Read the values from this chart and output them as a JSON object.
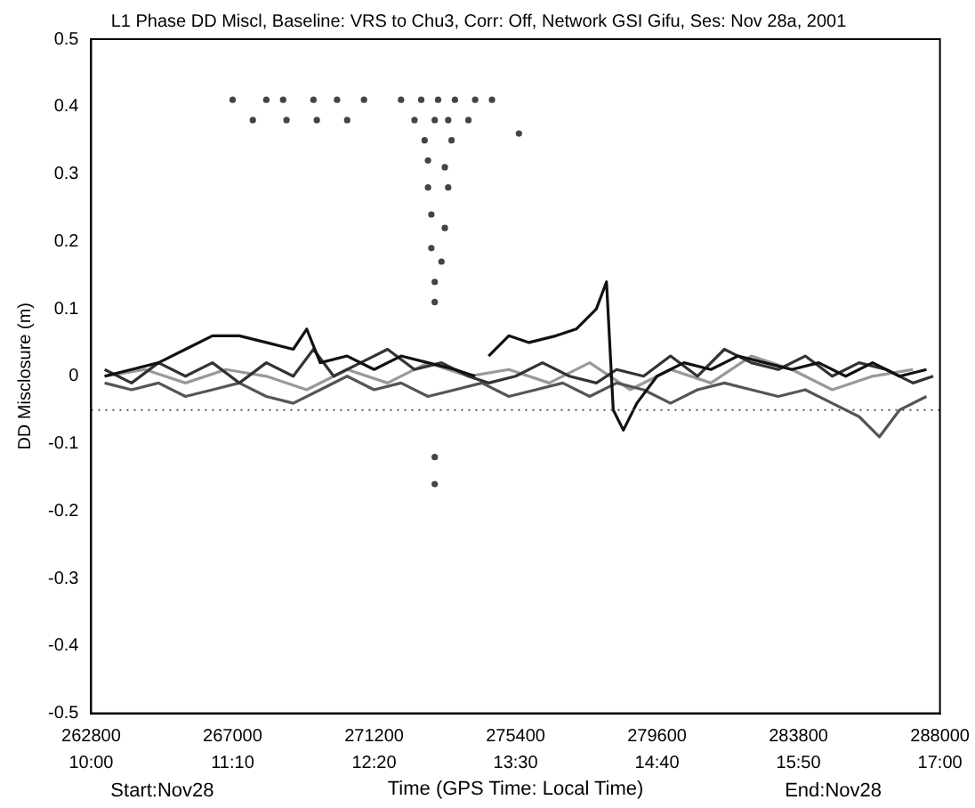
{
  "chart_data": {
    "type": "line",
    "title": "L1 Phase DD Miscl, Baseline: VRS to Chu3, Corr: Off, Network GSI Gifu, Ses: Nov 28a, 2001",
    "xlabel": "Time (GPS Time: Local Time)",
    "ylabel": "DD Misclosure (m)",
    "annotations": [
      "Start:Nov28",
      "End:Nov28"
    ],
    "xlim": [
      262800,
      288000
    ],
    "xticks": [
      262800,
      267000,
      271200,
      275400,
      279600,
      283800,
      288000
    ],
    "x2lim": [
      10,
      17
    ],
    "x2ticks": [
      {
        "value": 10,
        "label": "10:00"
      },
      {
        "value": 11.1667,
        "label": "11:10"
      },
      {
        "value": 12.3333,
        "label": "12:20"
      },
      {
        "value": 13.5,
        "label": "13:30"
      },
      {
        "value": 14.6667,
        "label": "14:40"
      },
      {
        "value": 15.8333,
        "label": "15:50"
      },
      {
        "value": 17,
        "label": "17:00"
      }
    ],
    "ylim": [
      -0.5,
      0.5
    ],
    "yticks": [
      -0.5,
      -0.4,
      -0.3,
      -0.2,
      -0.1,
      0,
      0.1,
      0.2,
      0.3,
      0.4,
      0.5
    ],
    "grid": false,
    "legend": false,
    "marker": "none",
    "line_style": "solid",
    "ref_lines": [
      {
        "axis": "y",
        "value": -0.05,
        "color": "#555555",
        "line_style": "dotted"
      }
    ],
    "series": [
      {
        "color": "#111111",
        "x": [
          263200,
          264000,
          264800,
          265600,
          266400,
          267200,
          268000,
          268800,
          269200,
          269600,
          270400,
          271200,
          272000,
          272800,
          273600,
          274200,
          274400,
          274600,
          275200,
          275800,
          276600,
          277200,
          277800,
          278100,
          278300,
          278600,
          279000,
          279600,
          280400,
          281200,
          282000,
          282800,
          283600,
          284400,
          285200,
          286000,
          286800,
          287600
        ],
        "values": [
          0.0,
          0.01,
          0.02,
          0.04,
          0.06,
          0.06,
          0.05,
          0.04,
          0.07,
          0.02,
          0.03,
          0.01,
          0.03,
          0.02,
          0.01,
          0.0,
          null,
          0.03,
          0.06,
          0.05,
          0.06,
          0.07,
          0.1,
          0.14,
          -0.05,
          -0.08,
          -0.04,
          0.0,
          0.02,
          0.01,
          0.03,
          0.02,
          0.01,
          0.02,
          0.0,
          0.02,
          0.0,
          0.01
        ]
      },
      {
        "color": "#333333",
        "x": [
          263200,
          264000,
          264800,
          265600,
          266400,
          267200,
          268000,
          268800,
          269400,
          270000,
          270800,
          271600,
          272400,
          273200,
          274000,
          274600,
          275400,
          276200,
          277000,
          277800,
          278400,
          279200,
          280000,
          280800,
          281600,
          282400,
          283200,
          284000,
          284800,
          285600,
          286400,
          287200,
          287800
        ],
        "values": [
          0.01,
          -0.01,
          0.02,
          0.0,
          0.02,
          -0.01,
          0.02,
          0.0,
          0.04,
          0.0,
          0.02,
          0.04,
          0.01,
          0.02,
          0.0,
          -0.01,
          0.0,
          0.02,
          0.0,
          -0.01,
          0.01,
          0.0,
          0.03,
          0.0,
          0.04,
          0.02,
          0.01,
          0.03,
          0.0,
          0.02,
          0.01,
          -0.01,
          0.0
        ]
      },
      {
        "color": "#555555",
        "x": [
          263200,
          264000,
          264800,
          265600,
          266400,
          267200,
          268000,
          268800,
          269600,
          270400,
          271200,
          272000,
          272800,
          273600,
          274400,
          275200,
          276000,
          276800,
          277600,
          278400,
          279200,
          280000,
          280800,
          281600,
          282400,
          283200,
          284000,
          284800,
          285600,
          286200,
          286800,
          287600
        ],
        "values": [
          -0.01,
          -0.02,
          -0.01,
          -0.03,
          -0.02,
          -0.01,
          -0.03,
          -0.04,
          -0.02,
          0.0,
          -0.02,
          -0.01,
          -0.03,
          -0.02,
          -0.01,
          -0.03,
          -0.02,
          -0.01,
          -0.03,
          -0.01,
          -0.02,
          -0.04,
          -0.02,
          -0.01,
          -0.02,
          -0.03,
          -0.02,
          -0.04,
          -0.06,
          -0.09,
          -0.05,
          -0.03
        ]
      },
      {
        "color": "#999999",
        "x": [
          263200,
          264400,
          265600,
          266800,
          268000,
          269200,
          270400,
          271600,
          272800,
          274000,
          275200,
          276400,
          277600,
          278800,
          280000,
          281200,
          282400,
          283600,
          284800,
          286000,
          287200
        ],
        "values": [
          0.0,
          0.01,
          -0.01,
          0.01,
          0.0,
          -0.02,
          0.01,
          -0.01,
          0.02,
          0.0,
          0.01,
          -0.01,
          0.02,
          -0.02,
          0.01,
          -0.01,
          0.03,
          0.01,
          -0.02,
          0.0,
          0.01
        ]
      },
      {
        "type": "scatter",
        "marker": "circle",
        "color": "#444444",
        "x": [
          267000,
          268000,
          268500,
          269400,
          270100,
          270900,
          272000,
          272600,
          273100,
          273600,
          274200,
          274700,
          267600,
          268600,
          269500,
          270400,
          272400,
          273000,
          273400,
          274000,
          275500,
          272700,
          273500,
          272800,
          273300,
          272800,
          273400,
          272900,
          273300,
          272900,
          273200,
          273000,
          273000,
          273000,
          273000
        ],
        "values": [
          0.41,
          0.41,
          0.41,
          0.41,
          0.41,
          0.41,
          0.41,
          0.41,
          0.41,
          0.41,
          0.41,
          0.41,
          0.38,
          0.38,
          0.38,
          0.38,
          0.38,
          0.38,
          0.38,
          0.38,
          0.36,
          0.35,
          0.35,
          0.32,
          0.31,
          0.28,
          0.28,
          0.24,
          0.22,
          0.19,
          0.17,
          0.14,
          0.11,
          -0.12,
          -0.16
        ]
      }
    ]
  }
}
